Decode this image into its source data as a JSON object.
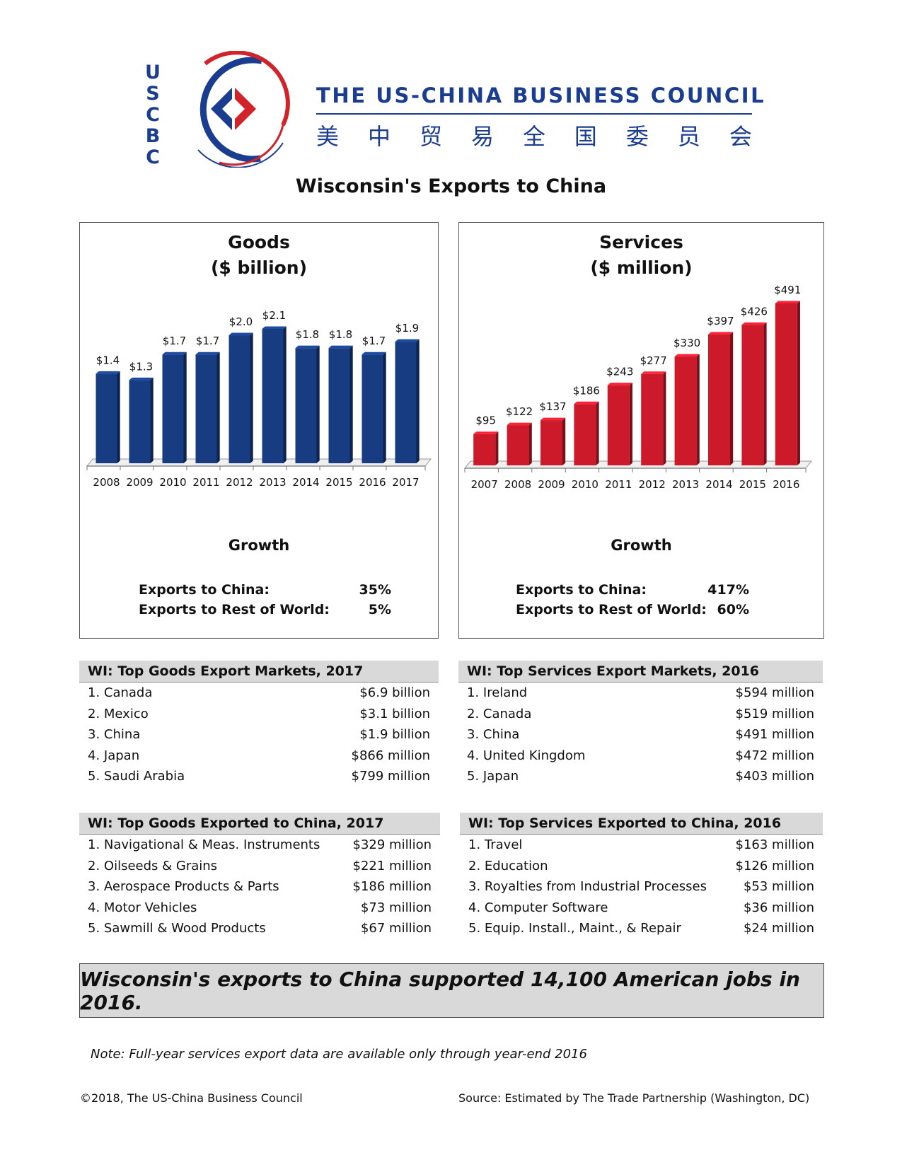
{
  "header": {
    "logo_letters": [
      "U",
      "S",
      "C",
      "B",
      "C"
    ],
    "org_name": "THE US-CHINA BUSINESS COUNCIL",
    "org_name_cn": [
      "美",
      "中",
      "贸",
      "易",
      "全",
      "国",
      "委",
      "员",
      "会"
    ]
  },
  "page_title": "Wisconsin's Exports to China",
  "colors": {
    "goods_bar": "#173c82",
    "services_bar": "#cc1a2a",
    "brand_blue": "#1a3d8f",
    "brand_red": "#d2232a"
  },
  "chart_data": [
    {
      "type": "bar",
      "title": "Goods",
      "subtitle": "($ billion)",
      "categories": [
        "2008",
        "2009",
        "2010",
        "2011",
        "2012",
        "2013",
        "2014",
        "2015",
        "2016",
        "2017"
      ],
      "values": [
        1.4,
        1.3,
        1.7,
        1.7,
        2.0,
        2.1,
        1.8,
        1.8,
        1.7,
        1.9
      ],
      "labels": [
        "$1.4",
        "$1.3",
        "$1.7",
        "$1.7",
        "$2.0",
        "$2.1",
        "$1.8",
        "$1.8",
        "$1.7",
        "$1.9"
      ],
      "ylim": [
        0,
        2.1
      ],
      "grid": false
    },
    {
      "type": "bar",
      "title": "Services",
      "subtitle": "($ million)",
      "categories": [
        "2007",
        "2008",
        "2009",
        "2010",
        "2011",
        "2012",
        "2013",
        "2014",
        "2015",
        "2016"
      ],
      "values": [
        95,
        122,
        137,
        186,
        243,
        277,
        330,
        397,
        426,
        491
      ],
      "labels": [
        "$95",
        "$122",
        "$137",
        "$186",
        "$243",
        "$277",
        "$330",
        "$397",
        "$426",
        "$491"
      ],
      "ylim": [
        0,
        491
      ],
      "grid": false
    }
  ],
  "growth": {
    "title": "Growth",
    "goods": [
      {
        "label": "Exports to China:",
        "value": "35%"
      },
      {
        "label": "Exports to Rest of World:",
        "value": "5%"
      }
    ],
    "services": [
      {
        "label": "Exports to China:",
        "value": "417%"
      },
      {
        "label": "Exports to Rest of World:",
        "value": "60%"
      }
    ]
  },
  "tables": {
    "goods_markets": {
      "title": "WI: Top Goods Export Markets, 2017",
      "rows": [
        {
          "name": "1. Canada",
          "value": "$6.9 billion"
        },
        {
          "name": "2. Mexico",
          "value": "$3.1 billion"
        },
        {
          "name": "3. China",
          "value": "$1.9 billion"
        },
        {
          "name": "4. Japan",
          "value": "$866 million"
        },
        {
          "name": "5. Saudi Arabia",
          "value": "$799 million"
        }
      ]
    },
    "services_markets": {
      "title": "WI: Top Services Export Markets, 2016",
      "rows": [
        {
          "name": "1. Ireland",
          "value": "$594 million"
        },
        {
          "name": "2. Canada",
          "value": "$519 million"
        },
        {
          "name": "3. China",
          "value": "$491 million"
        },
        {
          "name": "4. United Kingdom",
          "value": "$472 million"
        },
        {
          "name": "5. Japan",
          "value": "$403 million"
        }
      ]
    },
    "goods_exported": {
      "title": "WI: Top Goods Exported to China, 2017",
      "rows": [
        {
          "name": "1. Navigational & Meas. Instruments",
          "value": "$329 million"
        },
        {
          "name": "2. Oilseeds & Grains",
          "value": "$221 million"
        },
        {
          "name": "3. Aerospace Products & Parts",
          "value": "$186 million"
        },
        {
          "name": "4. Motor Vehicles",
          "value": "$73 million"
        },
        {
          "name": "5. Sawmill & Wood Products",
          "value": "$67 million"
        }
      ]
    },
    "services_exported": {
      "title": "WI: Top Services Exported to China, 2016",
      "rows": [
        {
          "name": "1. Travel",
          "value": "$163 million"
        },
        {
          "name": "2. Education",
          "value": "$126 million"
        },
        {
          "name": "3. Royalties from Industrial Processes",
          "value": "$53 million"
        },
        {
          "name": "4. Computer Software",
          "value": "$36 million"
        },
        {
          "name": "5. Equip. Install., Maint., & Repair",
          "value": "$24 million"
        }
      ]
    }
  },
  "banner": "Wisconsin's exports to China supported 14,100 American jobs in 2016.",
  "note": "Note: Full-year services export data are available only through year-end 2016",
  "footer": {
    "copyright": "©2018, The US-China Business Council",
    "source": "Source: Estimated by The Trade Partnership (Washington, DC)"
  }
}
